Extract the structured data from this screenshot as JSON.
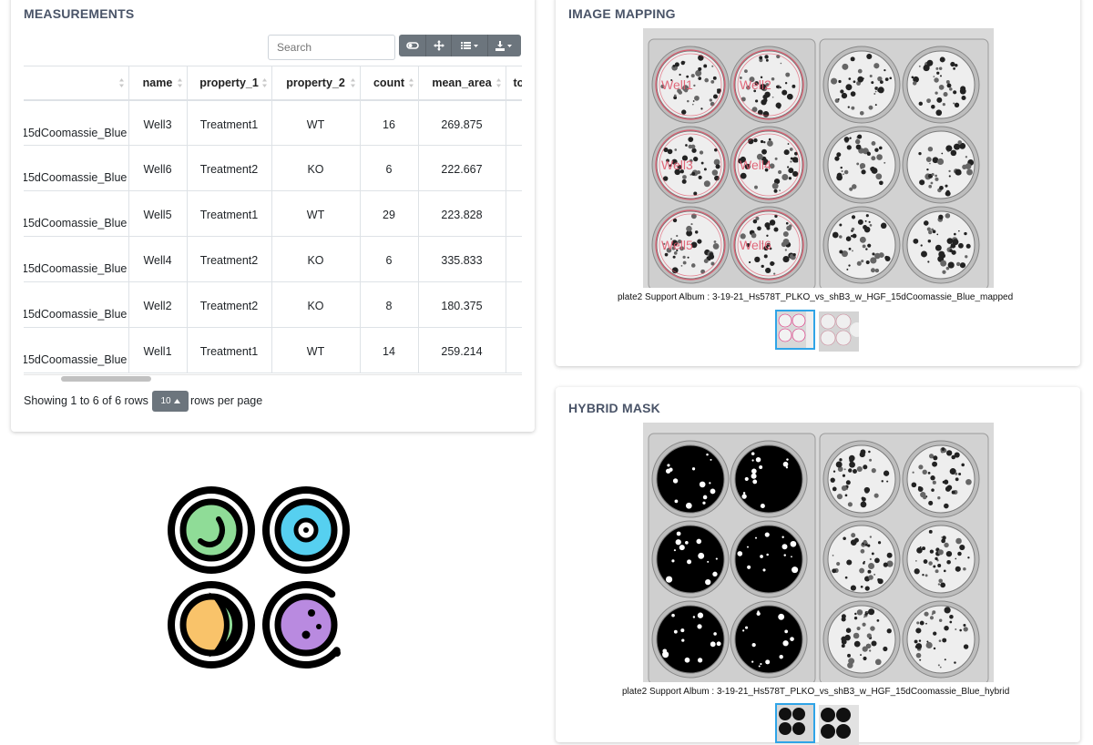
{
  "measurements": {
    "title": "MEASUREMENTS",
    "search_placeholder": "Search",
    "toolbar_icons": [
      "toggle-icon",
      "move-icon",
      "columns-icon",
      "export-icon"
    ],
    "columns": [
      "",
      "name",
      "property_1",
      "property_2",
      "count",
      "mean_area",
      "to"
    ],
    "rows": [
      [
        "15dCoomassie_Blue",
        "Well3",
        "Treatment1",
        "WT",
        "16",
        "269.875"
      ],
      [
        "15dCoomassie_Blue",
        "Well6",
        "Treatment2",
        "KO",
        "6",
        "222.667"
      ],
      [
        "15dCoomassie_Blue",
        "Well5",
        "Treatment1",
        "WT",
        "29",
        "223.828"
      ],
      [
        "15dCoomassie_Blue",
        "Well4",
        "Treatment2",
        "KO",
        "6",
        "335.833"
      ],
      [
        "15dCoomassie_Blue",
        "Well2",
        "Treatment2",
        "KO",
        "8",
        "180.375"
      ],
      [
        "15dCoomassie_Blue",
        "Well1",
        "Treatment1",
        "WT",
        "14",
        "259.214"
      ]
    ],
    "footer": {
      "showing": "Showing 1 to 6 of 6 rows",
      "page_size": "10",
      "rows_per_page": "rows per page"
    }
  },
  "image_mapping": {
    "title": "IMAGE MAPPING",
    "caption": "plate2 Support Album : 3-19-21_Hs578T_PLKO_vs_shB3_w_HGF_15dCoomassie_Blue_mapped",
    "well_labels": [
      "Well1",
      "Well2",
      "Well3",
      "Well4",
      "Well5",
      "Well6"
    ]
  },
  "hybrid_mask": {
    "title": "HYBRID MASK",
    "caption": "plate2 Support Album : 3-19-21_Hs578T_PLKO_vs_shB3_w_HGF_15dCoomassie_Blue_hybrid"
  },
  "colors": {
    "accent": "#2fa4e7",
    "button": "#6c757d",
    "title": "#4a5468",
    "well_circle": "#e05a6e",
    "logo_green": "#8fdc97",
    "logo_blue": "#56d0f0",
    "logo_yellow": "#f9c36a",
    "logo_purple": "#b98ae0"
  }
}
